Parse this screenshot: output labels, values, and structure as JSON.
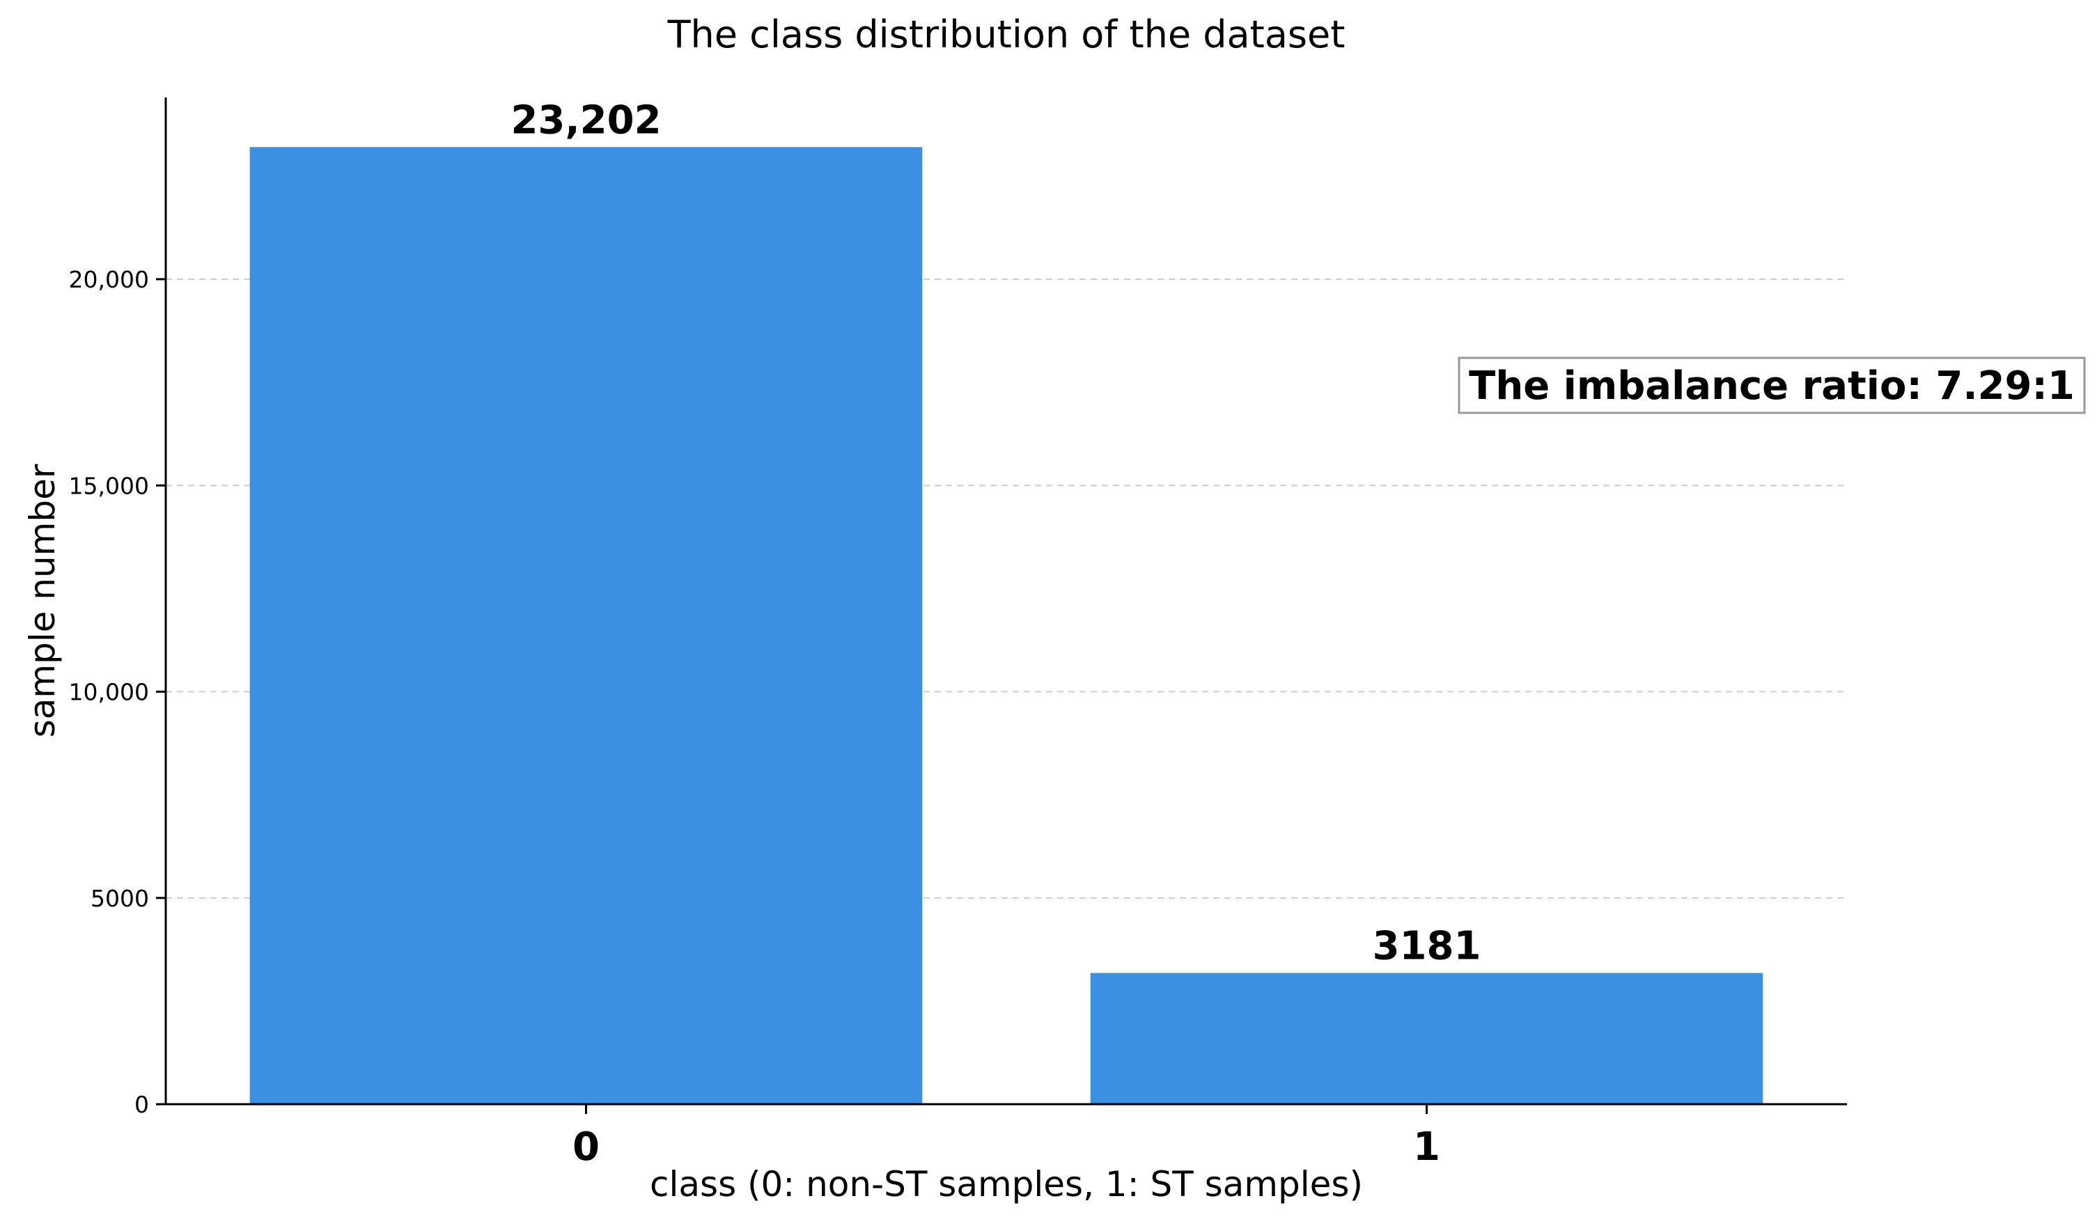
{
  "chart_data": {
    "type": "bar",
    "title": "The class distribution of the dataset",
    "xlabel": "class (0: non-ST samples, 1: ST samples)",
    "ylabel": "sample number",
    "categories": [
      "0",
      "1"
    ],
    "values": [
      23202,
      3181
    ],
    "value_labels": [
      "23,202",
      "3181"
    ],
    "ylim": [
      0,
      25000
    ],
    "yticks": [
      0,
      5000,
      10000,
      15000,
      20000
    ],
    "ytick_labels": [
      "0",
      "5000",
      "10,000",
      "15,000",
      "20,000"
    ],
    "grid": "y-dashed",
    "bar_color": "#3c90e2",
    "annotation": "The imbalance ratio: 7.29:1"
  }
}
